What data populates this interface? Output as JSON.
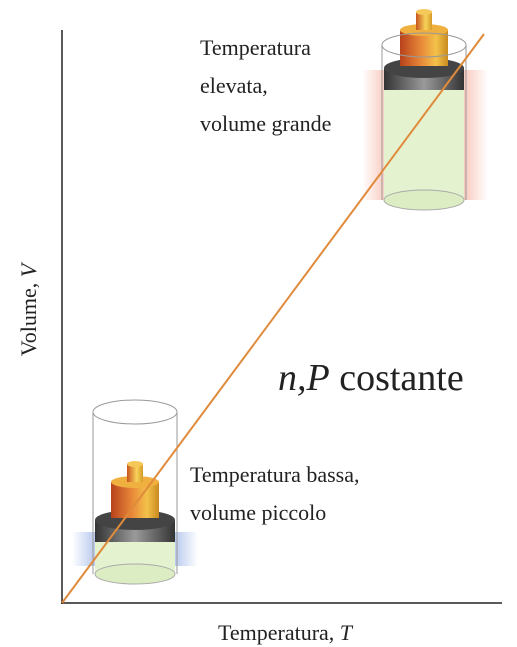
{
  "y_axis": {
    "label": "Volume,",
    "symbol": "V"
  },
  "x_axis": {
    "label": "Temperatura,",
    "symbol": "T"
  },
  "high": {
    "lines": [
      "Temperatura",
      "elevata,",
      "volume grande"
    ]
  },
  "low": {
    "lines": [
      "Temperatura bassa,",
      "volume piccolo"
    ]
  },
  "condition": {
    "symbol": "n,P",
    "text": "costante"
  }
}
